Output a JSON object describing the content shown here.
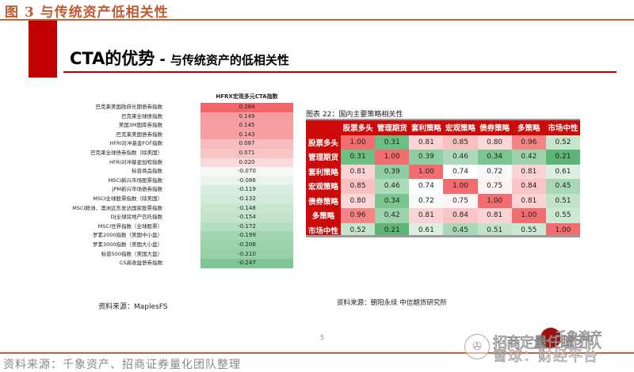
{
  "figure_caption": "图 3  与传统资产低相关性",
  "slide": {
    "title_main": "CTA的优势",
    "title_sep": "-",
    "title_sub": "与传统资产的低相关性",
    "page_number": "5"
  },
  "left_table": {
    "header": "HFRX宏观多元CTA指数",
    "rows": [
      {
        "label": "巴克莱美国政府长期债券指数",
        "value": "0.284",
        "color": "#f2666b"
      },
      {
        "label": "巴克莱全球债指数",
        "value": "0.149",
        "color": "#f59da0"
      },
      {
        "label": "美国3M国库券指数",
        "value": "0.145",
        "color": "#f59fa2"
      },
      {
        "label": "巴克莱美国债券指数",
        "value": "0.143",
        "color": "#f5a1a4"
      },
      {
        "label": "HFRI对冲基金FOF指数",
        "value": "0.087",
        "color": "#f8bcbe"
      },
      {
        "label": "巴克莱全球债券指数（除美国）",
        "value": "0.071",
        "color": "#f9c4c6"
      },
      {
        "label": "HFRI对冲基金加权指数",
        "value": "0.020",
        "color": "#fbdadb"
      },
      {
        "label": "标普商品指数",
        "value": "-0.070",
        "color": "#f4f9f5"
      },
      {
        "label": "MSCI新兴市场股票指数",
        "value": "-0.086",
        "color": "#e9f5ec"
      },
      {
        "label": "JPM新兴市场债券指数",
        "value": "-0.119",
        "color": "#d9eedf"
      },
      {
        "label": "MSCI全球股票指数（除美国）",
        "value": "-0.132",
        "color": "#d2ebd8"
      },
      {
        "label": "MSCI欧洲、澳洲远东发达国家股票指数",
        "value": "-0.148",
        "color": "#c7e6cf"
      },
      {
        "label": "DJ全球房地产信托指数",
        "value": "-0.154",
        "color": "#c2e4cb"
      },
      {
        "label": "MSCI世界指数（全球股票）",
        "value": "-0.172",
        "color": "#b5dec0"
      },
      {
        "label": "罗素2000指数（美国中小盘）",
        "value": "-0.199",
        "color": "#a1d5af"
      },
      {
        "label": "罗素3000指数（美国大小盘）",
        "value": "-0.208",
        "color": "#9ad2a9"
      },
      {
        "label": "标普500指数（美国大盘）",
        "value": "-0.210",
        "color": "#98d1a8"
      },
      {
        "label": "CS高收益债券指数",
        "value": "-0.247",
        "color": "#7dc592"
      }
    ],
    "source": "资料来源：MaplesFS"
  },
  "right_table": {
    "caption": "图表 22：国内主要策略相关性",
    "columns": [
      "股票多头",
      "管理期货",
      "套利策略",
      "宏观策略",
      "债券策略",
      "多策略",
      "市场中性"
    ],
    "rows": [
      {
        "label": "股票多头",
        "cells": [
          {
            "v": "1.00",
            "c": "#f26d6f"
          },
          {
            "v": "0.31",
            "c": "#6bbf83"
          },
          {
            "v": "0.81",
            "c": "#fbd3d4"
          },
          {
            "v": "0.85",
            "c": "#f9c0c1"
          },
          {
            "v": "0.80",
            "c": "#fbd7d8"
          },
          {
            "v": "0.96",
            "c": "#f48587"
          },
          {
            "v": "0.52",
            "c": "#c5e6cc"
          }
        ]
      },
      {
        "label": "管理期货",
        "cells": [
          {
            "v": "0.31",
            "c": "#6bbf83"
          },
          {
            "v": "1.00",
            "c": "#f26d6f"
          },
          {
            "v": "0.39",
            "c": "#8fcea1"
          },
          {
            "v": "0.46",
            "c": "#acdaba"
          },
          {
            "v": "0.34",
            "c": "#7ac590"
          },
          {
            "v": "0.42",
            "c": "#9cd3ab"
          },
          {
            "v": "0.21",
            "c": "#5eb577"
          }
        ]
      },
      {
        "label": "套利策略",
        "cells": [
          {
            "v": "0.81",
            "c": "#fbd3d4"
          },
          {
            "v": "0.39",
            "c": "#8fcea1"
          },
          {
            "v": "1.00",
            "c": "#f26d6f"
          },
          {
            "v": "0.74",
            "c": "#ffffff"
          },
          {
            "v": "0.72",
            "c": "#f6fbf7"
          },
          {
            "v": "0.81",
            "c": "#fbd3d4"
          },
          {
            "v": "0.61",
            "c": "#dcefe1"
          }
        ]
      },
      {
        "label": "宏观策略",
        "cells": [
          {
            "v": "0.85",
            "c": "#f9c0c1"
          },
          {
            "v": "0.46",
            "c": "#acdaba"
          },
          {
            "v": "0.74",
            "c": "#ffffff"
          },
          {
            "v": "1.00",
            "c": "#f26d6f"
          },
          {
            "v": "0.75",
            "c": "#fdf3f3"
          },
          {
            "v": "0.84",
            "c": "#f9c5c6"
          },
          {
            "v": "0.45",
            "c": "#a8d8b6"
          }
        ]
      },
      {
        "label": "债券策略",
        "cells": [
          {
            "v": "0.80",
            "c": "#fbd7d8"
          },
          {
            "v": "0.34",
            "c": "#7ac590"
          },
          {
            "v": "0.72",
            "c": "#f6fbf7"
          },
          {
            "v": "0.75",
            "c": "#fdf3f3"
          },
          {
            "v": "1.00",
            "c": "#f26d6f"
          },
          {
            "v": "0.81",
            "c": "#fbd3d4"
          },
          {
            "v": "0.51",
            "c": "#c1e4c9"
          }
        ]
      },
      {
        "label": "多策略",
        "cells": [
          {
            "v": "0.96",
            "c": "#f48587"
          },
          {
            "v": "0.42",
            "c": "#9cd3ab"
          },
          {
            "v": "0.81",
            "c": "#fbd3d4"
          },
          {
            "v": "0.84",
            "c": "#f9c5c6"
          },
          {
            "v": "0.81",
            "c": "#fbd3d4"
          },
          {
            "v": "1.00",
            "c": "#f26d6f"
          },
          {
            "v": "0.55",
            "c": "#cbe9d2"
          }
        ]
      },
      {
        "label": "市场中性",
        "cells": [
          {
            "v": "0.52",
            "c": "#c5e6cc"
          },
          {
            "v": "0.21",
            "c": "#5eb577"
          },
          {
            "v": "0.61",
            "c": "#dcefe1"
          },
          {
            "v": "0.45",
            "c": "#a8d8b6"
          },
          {
            "v": "0.51",
            "c": "#c1e4c9"
          },
          {
            "v": "0.55",
            "c": "#cbe9d2"
          },
          {
            "v": "1.00",
            "c": "#f26d6f"
          }
        ]
      }
    ],
    "source": "资料来源：朝阳永续 中信期货研究所"
  },
  "footer": {
    "source": "资料来源：千象资产、招商证券量化团队整理"
  },
  "watermark": {
    "logo": "✇",
    "team": "招商定量任瞳团队",
    "brand": "千象资产",
    "platform": "雪球：财经平台"
  },
  "colors": {
    "accent_red": "#c00000",
    "caption_orange": "#c05a33",
    "table_header_red": "#cc0a0a"
  }
}
